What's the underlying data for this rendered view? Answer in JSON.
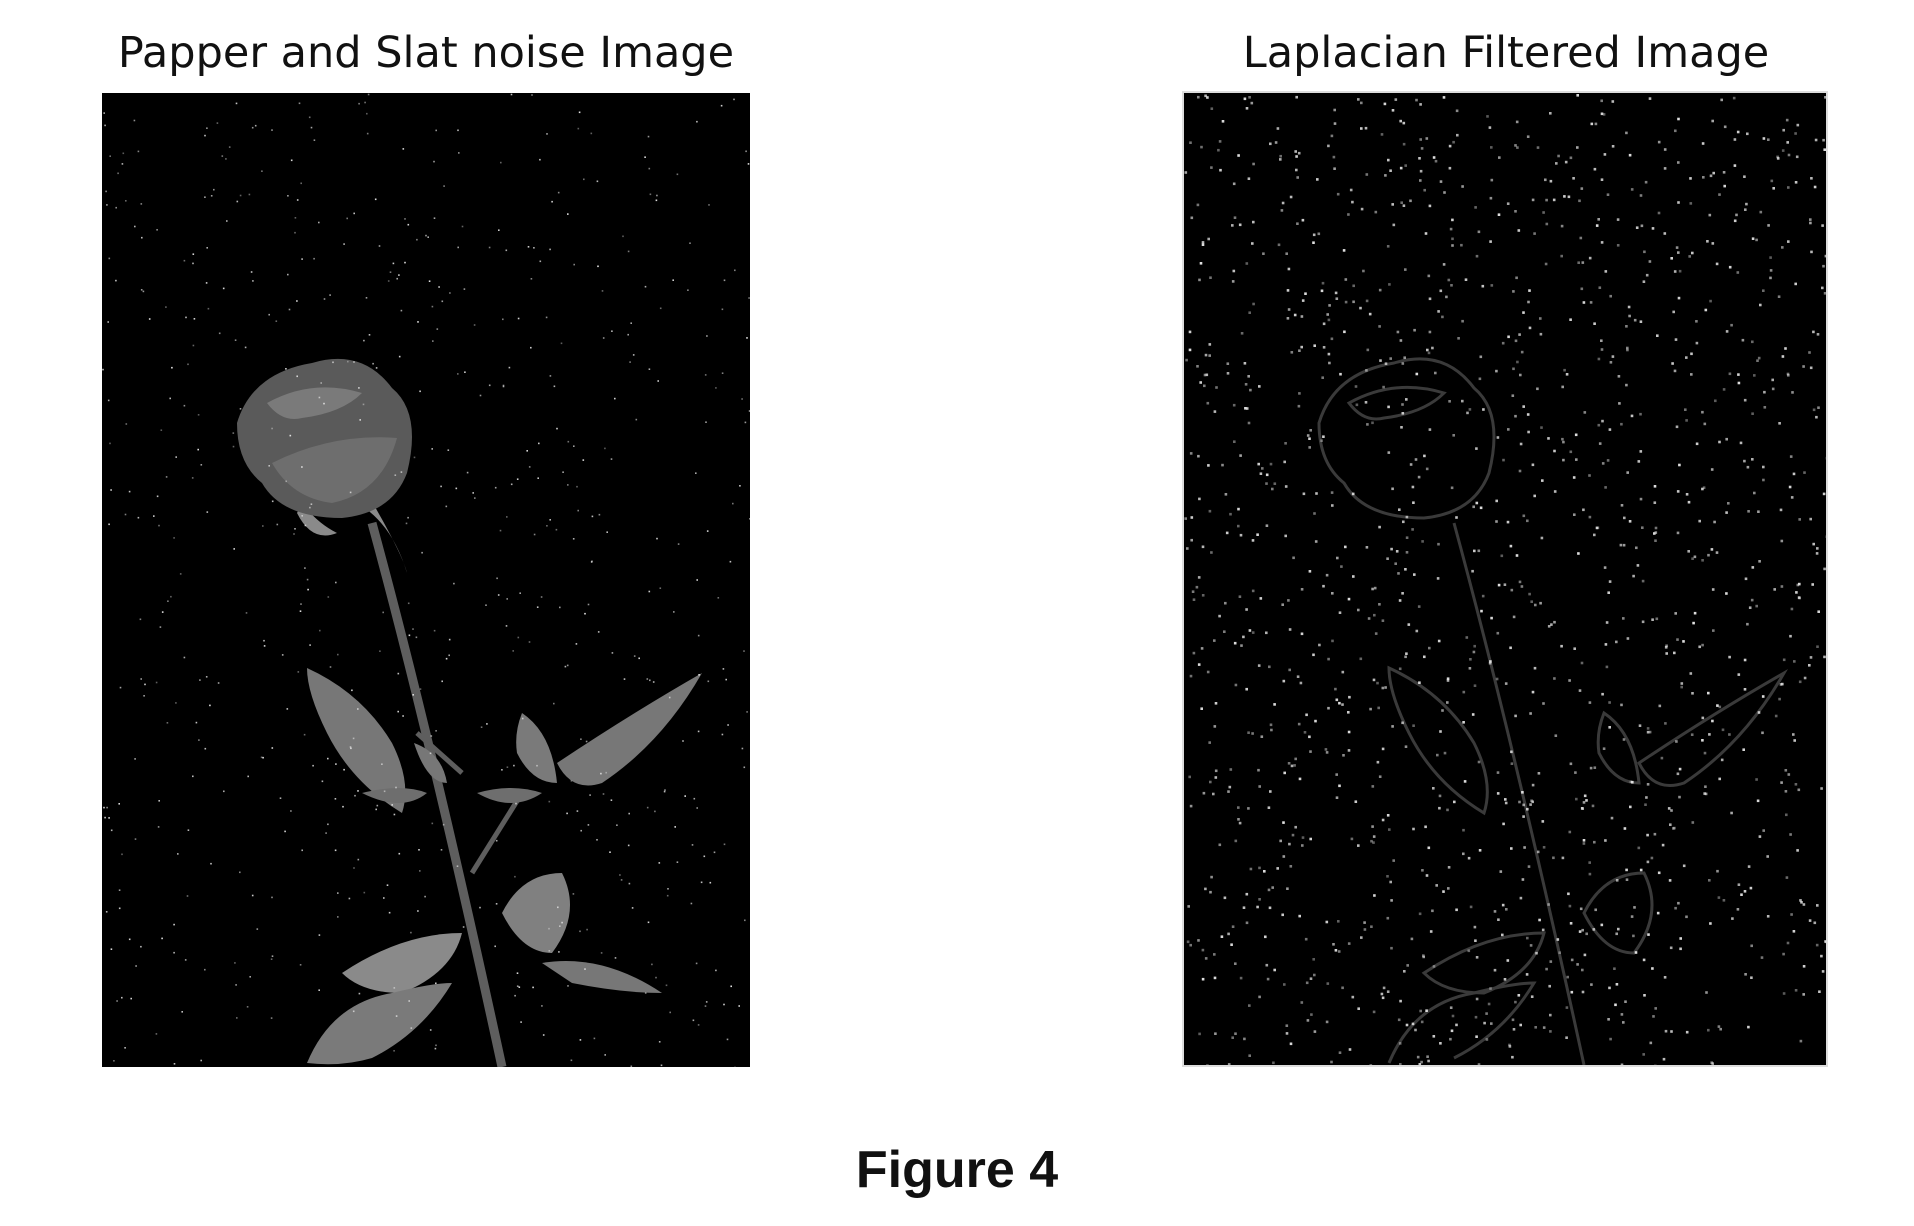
{
  "figure": {
    "caption": "Figure 4",
    "background_color": "#ffffff"
  },
  "panels": [
    {
      "id": "noisy",
      "title": "Papper and Slat noise Image",
      "image_description_icon": "rose-photo-grayscale",
      "noise_density": 0.04
    },
    {
      "id": "laplacian",
      "title": "Laplacian Filtered Image",
      "image_description_icon": "rose-edge-map",
      "noise_density": 0.09
    }
  ],
  "colors": {
    "image_background": "#000000",
    "rose_fill": "#6a6a6a",
    "leaf_fill": "#777777",
    "stem": "#5e5e5e",
    "edge_stroke": "#3a3a3a",
    "noise_dot": "#e0e0e0"
  }
}
